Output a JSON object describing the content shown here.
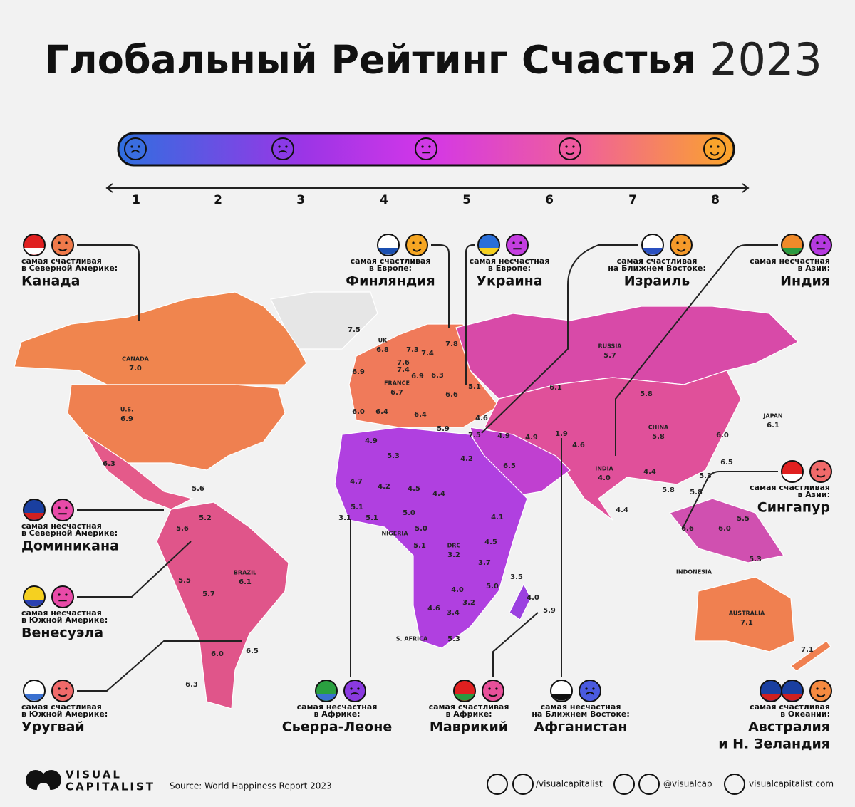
{
  "header": {
    "title": "Глобальный Рейтинг Счастья",
    "year": "2023"
  },
  "scale": {
    "ticks": [
      "1",
      "2",
      "3",
      "4",
      "5",
      "6",
      "7",
      "8"
    ]
  },
  "map": {
    "labels": [
      {
        "name": "CANADA",
        "value": "7.0"
      },
      {
        "name": "U.S.",
        "value": "6.9"
      },
      {
        "value": "6.3"
      },
      {
        "value": "5.6"
      },
      {
        "value": "5.2"
      },
      {
        "value": "5.6"
      },
      {
        "value": "5.5"
      },
      {
        "value": "5.7"
      },
      {
        "name": "BRAZIL",
        "value": "6.1"
      },
      {
        "value": "6.0"
      },
      {
        "value": "6.5"
      },
      {
        "value": "6.3"
      },
      {
        "value": "7.5"
      },
      {
        "name": "UK",
        "value": "6.8"
      },
      {
        "value": "7.3"
      },
      {
        "value": "7.4"
      },
      {
        "value": "7.8"
      },
      {
        "value": "7.6"
      },
      {
        "value": "7.4"
      },
      {
        "value": "6.9"
      },
      {
        "value": "6.9"
      },
      {
        "value": "6.3"
      },
      {
        "value": "5.1"
      },
      {
        "name": "FRANCE",
        "value": "6.7"
      },
      {
        "value": "6.6"
      },
      {
        "value": "6.0"
      },
      {
        "value": "6.4"
      },
      {
        "value": "6.4"
      },
      {
        "value": "5.9"
      },
      {
        "value": "7.5"
      },
      {
        "value": "4.6"
      },
      {
        "name": "RUSSIA",
        "value": "5.7"
      },
      {
        "value": "6.1"
      },
      {
        "value": "5.8"
      },
      {
        "name": "CHINA",
        "value": "5.8"
      },
      {
        "name": "JAPAN",
        "value": "6.1"
      },
      {
        "value": "6.0"
      },
      {
        "value": "6.5"
      },
      {
        "value": "5.3"
      },
      {
        "value": "4.9"
      },
      {
        "value": "5.3"
      },
      {
        "value": "4.2"
      },
      {
        "value": "6.5"
      },
      {
        "value": "4.9"
      },
      {
        "value": "4.9"
      },
      {
        "value": "1.9"
      },
      {
        "value": "4.6"
      },
      {
        "name": "INDIA",
        "value": "4.0"
      },
      {
        "value": "4.4"
      },
      {
        "value": "5.8"
      },
      {
        "value": "5.8"
      },
      {
        "value": "4.4"
      },
      {
        "value": "4.7"
      },
      {
        "value": "4.2"
      },
      {
        "value": "4.5"
      },
      {
        "value": "4.4"
      },
      {
        "value": "5.1"
      },
      {
        "value": "5.1"
      },
      {
        "value": "5.0"
      },
      {
        "value": "3.1"
      },
      {
        "name": "NIGERIA"
      },
      {
        "value": "5.0"
      },
      {
        "value": "4.1"
      },
      {
        "name": "DRC",
        "value": "3.2"
      },
      {
        "value": "4.5"
      },
      {
        "value": "5.1"
      },
      {
        "value": "3.7"
      },
      {
        "value": "3.5"
      },
      {
        "value": "5.0"
      },
      {
        "value": "4.0"
      },
      {
        "value": "4.0"
      },
      {
        "value": "3.2"
      },
      {
        "value": "5.9"
      },
      {
        "value": "4.6"
      },
      {
        "value": "3.4"
      },
      {
        "name": "S. AFRICA"
      },
      {
        "value": "5.3"
      },
      {
        "value": "6.6"
      },
      {
        "value": "6.0"
      },
      {
        "value": "5.5"
      },
      {
        "name": "INDONESIA"
      },
      {
        "value": "5.3"
      },
      {
        "name": "AUSTRALIA",
        "value": "7.1"
      },
      {
        "value": "7.1"
      }
    ]
  },
  "callouts": [
    {
      "caption": [
        "самая счастливая",
        "в Северной Америке:"
      ],
      "country": [
        "Канада"
      ]
    },
    {
      "caption": [
        "самая счастливая",
        "в Европе:"
      ],
      "country": [
        "Финляндия"
      ]
    },
    {
      "caption": [
        "самая несчастная",
        "в Европе:"
      ],
      "country": [
        "Украина"
      ]
    },
    {
      "caption": [
        "самая счастливая",
        "на Ближнем Востоке:"
      ],
      "country": [
        "Израиль"
      ]
    },
    {
      "caption": [
        "самая несчастная",
        "в Азии:"
      ],
      "country": [
        "Индия"
      ]
    },
    {
      "caption": [
        "самая несчастная",
        "в Северной Америке:"
      ],
      "country": [
        "Доминикана"
      ]
    },
    {
      "caption": [
        "самая несчастная",
        "в Южной Америке:"
      ],
      "country": [
        "Венесуэла"
      ]
    },
    {
      "caption": [
        "самая счастливая",
        "в Южной Америке:"
      ],
      "country": [
        "Уругвай"
      ]
    },
    {
      "caption": [
        "самая счастливая",
        "в Азии:"
      ],
      "country": [
        "Сингапур"
      ]
    },
    {
      "caption": [
        "самая несчастная",
        "в Африке:"
      ],
      "country": [
        "Сьерра-Леоне"
      ]
    },
    {
      "caption": [
        "самая счастливая",
        "в Африке:"
      ],
      "country": [
        "Маврикий"
      ]
    },
    {
      "caption": [
        "самая несчастная",
        "на Ближнем Востоке:"
      ],
      "country": [
        "Афганистан"
      ]
    },
    {
      "caption": [
        "самая счастливая",
        "в Океании:"
      ],
      "country": [
        "Австралия",
        "и Н. Зеландия"
      ]
    }
  ],
  "footer": {
    "brand": [
      "VISUAL",
      "CAPITALIST"
    ],
    "source": "Source: World Happiness Report 2023",
    "social": [
      "/visualcapitalist",
      "@visualcap",
      "visualcapitalist.com"
    ]
  }
}
